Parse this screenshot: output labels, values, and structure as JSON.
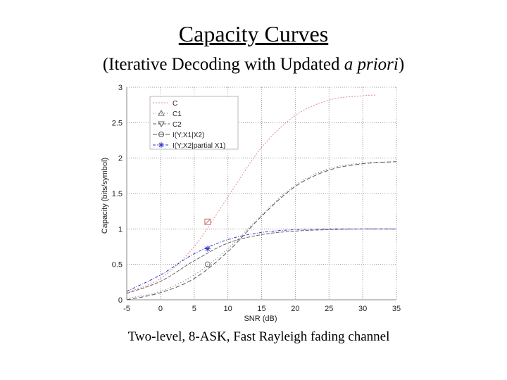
{
  "slide": {
    "title": "Capacity Curves",
    "subtitle_pre": "(Iterative Decoding with Updated ",
    "subtitle_em": "a priori",
    "subtitle_post": ")",
    "caption": "Two-level, 8-ASK, Fast Rayleigh fading channel"
  },
  "chart_data": {
    "type": "line",
    "xlabel": "SNR (dB)",
    "ylabel": "Capacity (bits/symbol)",
    "xlim": [
      -5,
      35
    ],
    "ylim": [
      0,
      3
    ],
    "xticks": [
      -5,
      0,
      5,
      10,
      15,
      20,
      25,
      30,
      35
    ],
    "yticks": [
      0,
      0.5,
      1,
      1.5,
      2,
      2.5,
      3
    ],
    "grid": true,
    "legend_position": "top-left",
    "series": [
      {
        "name": "C",
        "color": "#e08a8a",
        "dash": "2,2",
        "marker": "none",
        "x": [
          -5,
          0,
          5,
          10,
          15,
          20,
          25,
          30,
          32
        ],
        "y": [
          0.1,
          0.3,
          0.75,
          1.45,
          2.15,
          2.6,
          2.82,
          2.88,
          2.89
        ]
      },
      {
        "name": "C1",
        "color": "#666666",
        "dash": "1,3",
        "marker": "triangle-up",
        "x": [
          -5,
          0,
          5,
          10,
          15,
          20,
          25,
          30,
          35
        ],
        "y": [
          0.02,
          0.12,
          0.35,
          0.72,
          1.2,
          1.62,
          1.85,
          1.93,
          1.95
        ]
      },
      {
        "name": "C2",
        "color": "#666666",
        "dash": "5,2",
        "marker": "triangle-down",
        "x": [
          -5,
          0,
          5,
          10,
          15,
          20,
          25,
          30,
          35
        ],
        "y": [
          0.09,
          0.26,
          0.55,
          0.8,
          0.92,
          0.97,
          0.99,
          1.0,
          1.0
        ]
      },
      {
        "name": "I(Y;X1|X2)",
        "color": "#555555",
        "dash": "6,3",
        "marker": "circle",
        "x": [
          -5,
          0,
          5,
          10,
          15,
          20,
          25,
          30,
          35
        ],
        "y": [
          0.0,
          0.1,
          0.3,
          0.68,
          1.18,
          1.6,
          1.83,
          1.92,
          1.95
        ]
      },
      {
        "name": "I(Y;X2|partial X1)",
        "color": "#3333cc",
        "dash": "4,2,1,2",
        "marker": "star",
        "x": [
          -5,
          0,
          5,
          10,
          15,
          20,
          25,
          30,
          35
        ],
        "y": [
          0.12,
          0.35,
          0.65,
          0.85,
          0.95,
          0.99,
          1.0,
          1.0,
          1.0
        ]
      }
    ],
    "annotations": [
      {
        "marker": "square",
        "color": "#cc6666",
        "x": 7,
        "y": 1.1
      },
      {
        "marker": "star",
        "color": "#3333cc",
        "x": 7,
        "y": 0.72
      },
      {
        "marker": "circle",
        "color": "#666666",
        "x": 7,
        "y": 0.5
      }
    ]
  }
}
